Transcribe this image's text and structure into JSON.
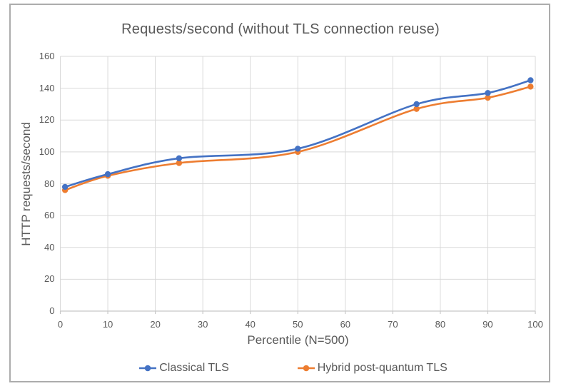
{
  "chart_data": {
    "type": "line",
    "title": "Requests/second (without TLS connection reuse)",
    "xlabel": "Percentile (N=500)",
    "ylabel": "HTTP requests/second",
    "xlim": [
      0,
      100
    ],
    "ylim": [
      0,
      160
    ],
    "xticks": [
      0,
      10,
      20,
      30,
      40,
      50,
      60,
      70,
      80,
      90,
      100
    ],
    "yticks": [
      0,
      20,
      40,
      60,
      80,
      100,
      120,
      140,
      160
    ],
    "x": [
      1,
      10,
      25,
      50,
      75,
      90,
      99
    ],
    "series": [
      {
        "name": "Classical TLS",
        "color": "#4472C4",
        "values": [
          78,
          86,
          96,
          102,
          130,
          137,
          145
        ]
      },
      {
        "name": "Hybrid post-quantum TLS",
        "color": "#ED7D31",
        "values": [
          76,
          85,
          93,
          100,
          127,
          134,
          141
        ]
      }
    ],
    "grid": true,
    "smooth": true,
    "legend_position": "bottom",
    "colors": {
      "gridline": "#d9d9d9",
      "axis_line": "#c8c8c8",
      "text": "#595959",
      "frame_border": "#acacac",
      "background": "#ffffff"
    }
  }
}
